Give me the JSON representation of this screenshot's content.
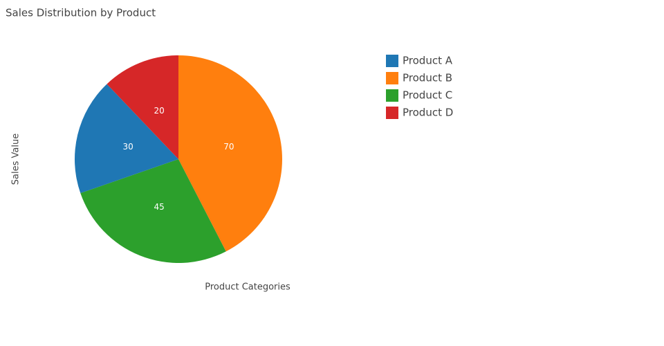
{
  "chart_data": {
    "type": "pie",
    "title": "Sales Distribution by Product",
    "x_label": "Product Categories",
    "y_label": "Sales Value",
    "categories": [
      "Product A",
      "Product B",
      "Product C",
      "Product D"
    ],
    "values": [
      30,
      70,
      45,
      20
    ],
    "colors": [
      "#1f77b4",
      "#ff7f0e",
      "#2ca02c",
      "#d62728"
    ],
    "sort": "descending",
    "direction": "clockwise",
    "legend": "top-right"
  }
}
